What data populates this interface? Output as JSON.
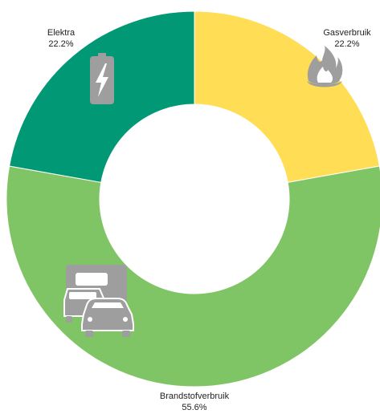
{
  "chart_data": {
    "type": "pie",
    "donut": true,
    "slices": [
      {
        "label": "Gasverbruik",
        "value": 22.2,
        "value_label": "22.2%",
        "color": "#FFDD55",
        "icon": "flame-icon"
      },
      {
        "label": "Brandstofverbruik",
        "value": 55.6,
        "value_label": "55.6%",
        "color": "#80C565",
        "icon": "vehicles-icon"
      },
      {
        "label": "Elektra",
        "value": 22.2,
        "value_label": "22.2%",
        "color": "#009875",
        "icon": "battery-icon"
      }
    ],
    "icon_color": "#9E9E9E"
  }
}
